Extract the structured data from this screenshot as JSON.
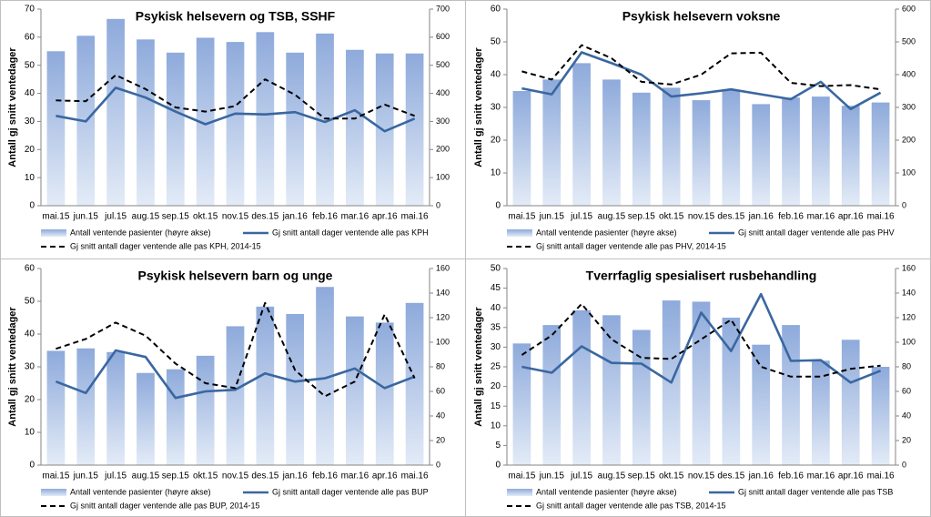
{
  "chart_data": [
    {
      "type": "combo",
      "title": "Psykisk helsevern og TSB, SSHF",
      "y_label": "Antall gj snitt ventedager",
      "categories": [
        "mai.15",
        "jun.15",
        "jul.15",
        "aug.15",
        "sep.15",
        "okt.15",
        "nov.15",
        "des.15",
        "jan.16",
        "feb.16",
        "mar.16",
        "apr.16",
        "mai.16"
      ],
      "ylim": [
        0,
        70
      ],
      "yticks": [
        0,
        10,
        20,
        30,
        40,
        50,
        60,
        70
      ],
      "y2lim": [
        0,
        700
      ],
      "y2ticks": [
        0,
        100,
        200,
        300,
        400,
        500,
        600,
        700
      ],
      "series": [
        {
          "name": "Antall ventende pasienter (høyre akse)",
          "color": "#8eaadb",
          "axis": "y2",
          "mark": "bar",
          "values": [
            550,
            605,
            665,
            592,
            545,
            598,
            583,
            618,
            545,
            613,
            555,
            542,
            542
          ]
        },
        {
          "name": "Gj snitt antall dager ventende alle pas KPH",
          "color": "#3a67a0",
          "mark": "line",
          "values": [
            32,
            30,
            42,
            38.5,
            33.5,
            29,
            32.8,
            32.5,
            33.3,
            29.8,
            34,
            26.5,
            31
          ]
        },
        {
          "name": "Gj snitt antall dager ventende alle pas KPH, 2014-15",
          "color": "#000000",
          "mark": "dashed-line",
          "values": [
            37.5,
            37.2,
            46.5,
            41.5,
            35,
            33.5,
            35.5,
            45,
            39.5,
            31,
            31,
            36,
            32
          ]
        }
      ]
    },
    {
      "type": "combo",
      "title": "Psykisk helsevern voksne",
      "y_label": "Antall gj snitt ventedager",
      "categories": [
        "mai.15",
        "jun.15",
        "jul.15",
        "aug.15",
        "sep.15",
        "okt.15",
        "nov.15",
        "des.15",
        "jan.16",
        "feb.16",
        "mar.16",
        "apr.16",
        "mai.16"
      ],
      "ylim": [
        0,
        60
      ],
      "yticks": [
        0,
        10,
        20,
        30,
        40,
        50,
        60
      ],
      "y2lim": [
        0,
        600
      ],
      "y2ticks": [
        0,
        100,
        200,
        300,
        400,
        500,
        600
      ],
      "series": [
        {
          "name": "Antall ventende pasienter (høyre akse)",
          "color": "#8eaadb",
          "axis": "y2",
          "mark": "bar",
          "values": [
            350,
            385,
            435,
            385,
            345,
            360,
            322,
            352,
            310,
            330,
            333,
            305,
            315
          ]
        },
        {
          "name": "Gj snitt antall dager ventende alle pas PHV",
          "color": "#3a67a0",
          "mark": "line",
          "values": [
            35.8,
            34,
            46.8,
            43.5,
            40,
            33.3,
            34.3,
            35.5,
            34,
            32.5,
            37.8,
            29.5,
            34.5
          ]
        },
        {
          "name": "Gj snitt antall dager ventende alle pas PHV, 2014-15",
          "color": "#000000",
          "mark": "dashed-line",
          "values": [
            41,
            38.5,
            49,
            45,
            37.8,
            37,
            40,
            46.5,
            46.7,
            37.5,
            36.5,
            36.8,
            35.5
          ]
        }
      ]
    },
    {
      "type": "combo",
      "title": "Psykisk helsevern barn og unge",
      "y_label": "Antall gj snitt ventedager",
      "categories": [
        "mai.15",
        "jun.15",
        "jul.15",
        "aug.15",
        "sep.15",
        "okt.15",
        "nov.15",
        "des.15",
        "jan.16",
        "feb.16",
        "mar.16",
        "apr.16",
        "mai.16"
      ],
      "ylim": [
        0,
        60
      ],
      "yticks": [
        0,
        10,
        20,
        30,
        40,
        50,
        60
      ],
      "y2lim": [
        0,
        160
      ],
      "y2ticks": [
        0,
        20,
        40,
        60,
        80,
        100,
        120,
        140,
        160
      ],
      "series": [
        {
          "name": "Antall ventende pasienter (høyre akse)",
          "color": "#8eaadb",
          "axis": "y2",
          "mark": "bar",
          "values": [
            93,
            95,
            92,
            75,
            78,
            89,
            113,
            129,
            123,
            145,
            121,
            116,
            132
          ]
        },
        {
          "name": "Gj snitt antall dager ventende alle pas BUP",
          "color": "#3a67a0",
          "mark": "line",
          "values": [
            25.5,
            22,
            35,
            33,
            20.5,
            22.5,
            23,
            28,
            25.5,
            26.5,
            29.5,
            23.5,
            27
          ]
        },
        {
          "name": "Gj snitt antall dager ventende alle pas BUP, 2014-15",
          "color": "#000000",
          "mark": "dashed-line",
          "values": [
            35.5,
            38.5,
            43.5,
            39.5,
            31,
            25,
            23.5,
            49.5,
            29,
            21,
            25.5,
            46,
            26.5
          ]
        }
      ]
    },
    {
      "type": "combo",
      "title": "Tverrfaglig spesialisert rusbehandling",
      "y_label": "Antall gj snitt ventedager",
      "categories": [
        "mai.15",
        "jun.15",
        "jul.15",
        "aug.15",
        "sep.15",
        "okt.15",
        "nov.15",
        "des.15",
        "jan.16",
        "feb.16",
        "mar.16",
        "apr.16",
        "mai.16"
      ],
      "ylim": [
        0,
        50
      ],
      "yticks": [
        0,
        5,
        10,
        15,
        20,
        25,
        30,
        35,
        40,
        45,
        50
      ],
      "y2lim": [
        0,
        160
      ],
      "y2ticks": [
        0,
        20,
        40,
        60,
        80,
        100,
        120,
        140,
        160
      ],
      "series": [
        {
          "name": "Antall ventende pasienter (høyre akse)",
          "color": "#8eaadb",
          "axis": "y2",
          "mark": "bar",
          "values": [
            99,
            114,
            126,
            122,
            110,
            134,
            133,
            120,
            98,
            114,
            85,
            102,
            80
          ]
        },
        {
          "name": "Gj snitt antall dager ventende alle pas TSB",
          "color": "#3a67a0",
          "mark": "line",
          "values": [
            25,
            23.5,
            30.2,
            26,
            25.8,
            21,
            38.8,
            29,
            43.5,
            26.5,
            26.7,
            21,
            24
          ]
        },
        {
          "name": "Gj snitt antall dager ventende alle pas TSB, 2014-15",
          "color": "#000000",
          "mark": "dashed-line",
          "values": [
            28,
            33,
            41,
            32,
            27.3,
            27,
            32,
            37,
            25,
            22.5,
            22.5,
            24.5,
            25.3
          ]
        }
      ]
    }
  ]
}
